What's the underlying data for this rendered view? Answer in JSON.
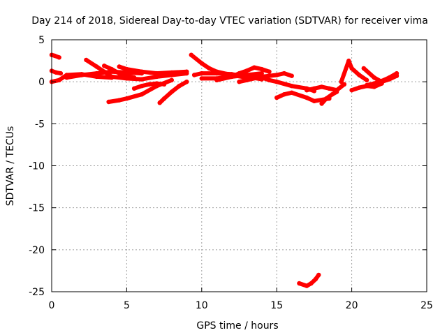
{
  "chart_data": {
    "type": "scatter",
    "title": "Day 214 of 2018, Sidereal Day-to-day VTEC variation (SDTVAR) for receiver vima",
    "xlabel": "GPS time / hours",
    "ylabel": "SDTVAR / TECUs",
    "xlim": [
      0,
      25
    ],
    "ylim": [
      -25,
      5
    ],
    "xticks": [
      "0",
      "5",
      "10",
      "15",
      "20",
      "25"
    ],
    "yticks": [
      "5",
      "0",
      "-5",
      "-10",
      "-15",
      "-20",
      "-25"
    ],
    "grid": true,
    "series_color": "#ff0000",
    "tracks": [
      {
        "name": "t1",
        "x": [
          0.0,
          0.2,
          0.5
        ],
        "y": [
          3.2,
          3.1,
          2.9
        ]
      },
      {
        "name": "t2",
        "x": [
          0.0,
          0.3,
          0.6
        ],
        "y": [
          1.3,
          1.1,
          1.0
        ]
      },
      {
        "name": "t3",
        "x": [
          0.0,
          0.5,
          1.0,
          2.0,
          3.0,
          4.0
        ],
        "y": [
          0.0,
          0.2,
          0.8,
          0.9,
          0.6,
          0.5
        ]
      },
      {
        "name": "t4",
        "x": [
          1.0,
          2.0,
          3.0,
          4.0,
          5.0,
          6.0
        ],
        "y": [
          0.5,
          0.8,
          1.0,
          1.2,
          1.1,
          1.0
        ]
      },
      {
        "name": "t5",
        "x": [
          2.3,
          3.0,
          3.5,
          4.0,
          5.0,
          6.0,
          7.0,
          8.0,
          9.0
        ],
        "y": [
          2.6,
          1.8,
          1.2,
          0.6,
          0.4,
          0.3,
          0.6,
          0.8,
          1.0
        ]
      },
      {
        "name": "t6",
        "x": [
          3.5,
          4.0,
          4.5,
          5.0,
          5.5
        ],
        "y": [
          1.9,
          1.5,
          1.0,
          0.7,
          0.5
        ]
      },
      {
        "name": "t7",
        "x": [
          4.5,
          5.0,
          6.0,
          7.0,
          8.0,
          9.0
        ],
        "y": [
          1.8,
          1.5,
          1.2,
          1.0,
          1.1,
          1.2
        ]
      },
      {
        "name": "t8",
        "x": [
          3.8,
          4.5,
          5.0,
          6.0,
          7.0,
          8.0
        ],
        "y": [
          -2.4,
          -2.2,
          -2.0,
          -1.5,
          -0.5,
          0.2
        ]
      },
      {
        "name": "t9",
        "x": [
          5.5,
          6.0,
          6.5,
          7.0,
          7.5
        ],
        "y": [
          -0.8,
          -0.5,
          -0.3,
          -0.2,
          -0.3
        ]
      },
      {
        "name": "t10",
        "x": [
          7.2,
          7.5,
          8.0,
          8.5,
          9.0
        ],
        "y": [
          -2.5,
          -2.0,
          -1.2,
          -0.5,
          0.0
        ]
      },
      {
        "name": "t11",
        "x": [
          9.3,
          10.0,
          10.5,
          11.0,
          12.0,
          13.0
        ],
        "y": [
          3.2,
          2.2,
          1.6,
          1.2,
          0.8,
          0.5
        ]
      },
      {
        "name": "t12",
        "x": [
          9.5,
          10.0,
          11.0,
          12.0,
          13.0,
          14.0
        ],
        "y": [
          0.8,
          1.0,
          1.0,
          0.9,
          0.6,
          0.3
        ]
      },
      {
        "name": "t13",
        "x": [
          10.0,
          11.0,
          12.0,
          13.0,
          14.0
        ],
        "y": [
          0.4,
          0.4,
          0.6,
          0.8,
          1.0
        ]
      },
      {
        "name": "t14",
        "x": [
          11.0,
          12.0,
          12.5,
          13.0,
          13.5,
          14.0,
          14.5
        ],
        "y": [
          0.2,
          0.6,
          1.0,
          1.3,
          1.7,
          1.5,
          1.2
        ]
      },
      {
        "name": "t15",
        "x": [
          12.5,
          13.0,
          14.0,
          15.0,
          15.5,
          16.0
        ],
        "y": [
          0.0,
          0.2,
          0.6,
          0.8,
          1.0,
          0.7
        ]
      },
      {
        "name": "t16",
        "x": [
          14.0,
          14.5,
          15.0,
          16.0,
          17.0,
          17.5
        ],
        "y": [
          0.5,
          0.2,
          0.0,
          -0.5,
          -0.8,
          -1.1
        ]
      },
      {
        "name": "t17",
        "x": [
          15.0,
          15.5,
          16.0,
          17.0,
          17.5,
          18.5
        ],
        "y": [
          -1.9,
          -1.5,
          -1.3,
          -1.9,
          -2.3,
          -2.0
        ]
      },
      {
        "name": "t18",
        "x": [
          17.0,
          17.5,
          18.0,
          18.5,
          19.0,
          19.5
        ],
        "y": [
          -1.0,
          -0.8,
          -0.6,
          -0.8,
          -1.0,
          -0.3
        ]
      },
      {
        "name": "t19",
        "x": [
          18.0,
          18.3,
          18.7,
          19.0
        ],
        "y": [
          -2.6,
          -2.0,
          -1.5,
          -1.2
        ]
      },
      {
        "name": "t20",
        "x": [
          19.3,
          19.8,
          20.0,
          20.5,
          21.0
        ],
        "y": [
          0.0,
          2.5,
          1.6,
          0.8,
          0.2
        ]
      },
      {
        "name": "t21",
        "x": [
          20.0,
          20.5,
          21.0,
          21.5,
          22.0
        ],
        "y": [
          -1.0,
          -0.7,
          -0.5,
          -0.6,
          -0.2
        ]
      },
      {
        "name": "t22",
        "x": [
          20.8,
          21.5,
          22.0,
          22.5,
          23.0
        ],
        "y": [
          1.6,
          0.5,
          0.0,
          0.3,
          0.7
        ]
      },
      {
        "name": "t23",
        "x": [
          21.0,
          21.5,
          22.0,
          22.5,
          23.0
        ],
        "y": [
          -0.4,
          -0.2,
          0.1,
          0.5,
          1.0
        ]
      },
      {
        "name": "t24",
        "x": [
          16.5,
          17.0,
          17.3,
          17.6,
          17.8
        ],
        "y": [
          -24.0,
          -24.3,
          -24.0,
          -23.5,
          -23.0
        ]
      }
    ]
  }
}
